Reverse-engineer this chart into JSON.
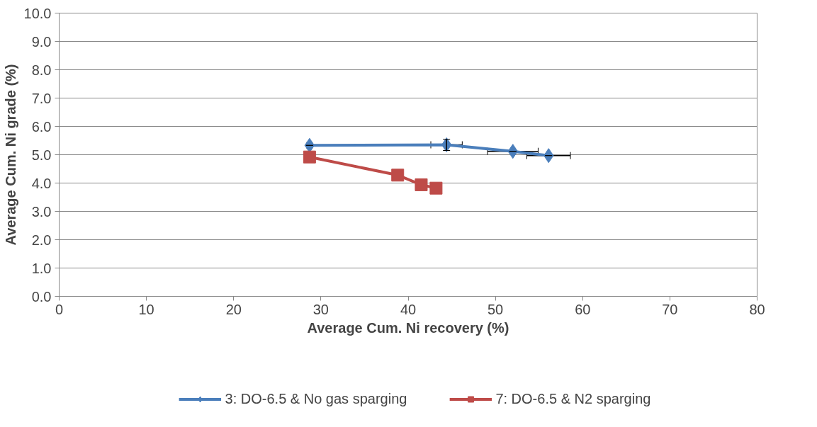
{
  "chart_data": {
    "type": "line",
    "xlabel": "Average Cum. Ni recovery (%)",
    "ylabel": "Average Cum. Ni grade (%)",
    "xlim": [
      0,
      80
    ],
    "xticks": [
      0,
      10,
      20,
      30,
      40,
      50,
      60,
      70,
      80
    ],
    "ylim": [
      0,
      10
    ],
    "yticks": [
      {
        "value": 0,
        "label": "0.0"
      },
      {
        "value": 1,
        "label": "1.0"
      },
      {
        "value": 2,
        "label": "2.0"
      },
      {
        "value": 3,
        "label": "3.0"
      },
      {
        "value": 4,
        "label": "4.0"
      },
      {
        "value": 5,
        "label": "5.0"
      },
      {
        "value": 6,
        "label": "6.0"
      },
      {
        "value": 7,
        "label": "7.0"
      },
      {
        "value": 8,
        "label": "8.0"
      },
      {
        "value": 9,
        "label": "9.0"
      },
      {
        "value": 10,
        "label": "10.0"
      }
    ],
    "grid": "y",
    "legend": "bottom",
    "series": [
      {
        "name": "3: DO-6.5 & No gas sparging",
        "color": "#4a7ebb",
        "marker": "diamond",
        "x": [
          28.7,
          44.4,
          52.0,
          56.1
        ],
        "values": [
          5.33,
          5.35,
          5.12,
          4.97
        ],
        "errors": [
          null,
          0.2,
          null,
          null
        ],
        "xerrors": [
          0.3,
          1.8,
          2.9,
          2.5
        ]
      },
      {
        "name": "7: DO-6.5 & N2 sparging",
        "color": "#be4b48",
        "marker": "square",
        "x": [
          28.7,
          38.8,
          41.5,
          43.2
        ],
        "values": [
          4.92,
          4.28,
          3.94,
          3.82
        ]
      }
    ]
  }
}
